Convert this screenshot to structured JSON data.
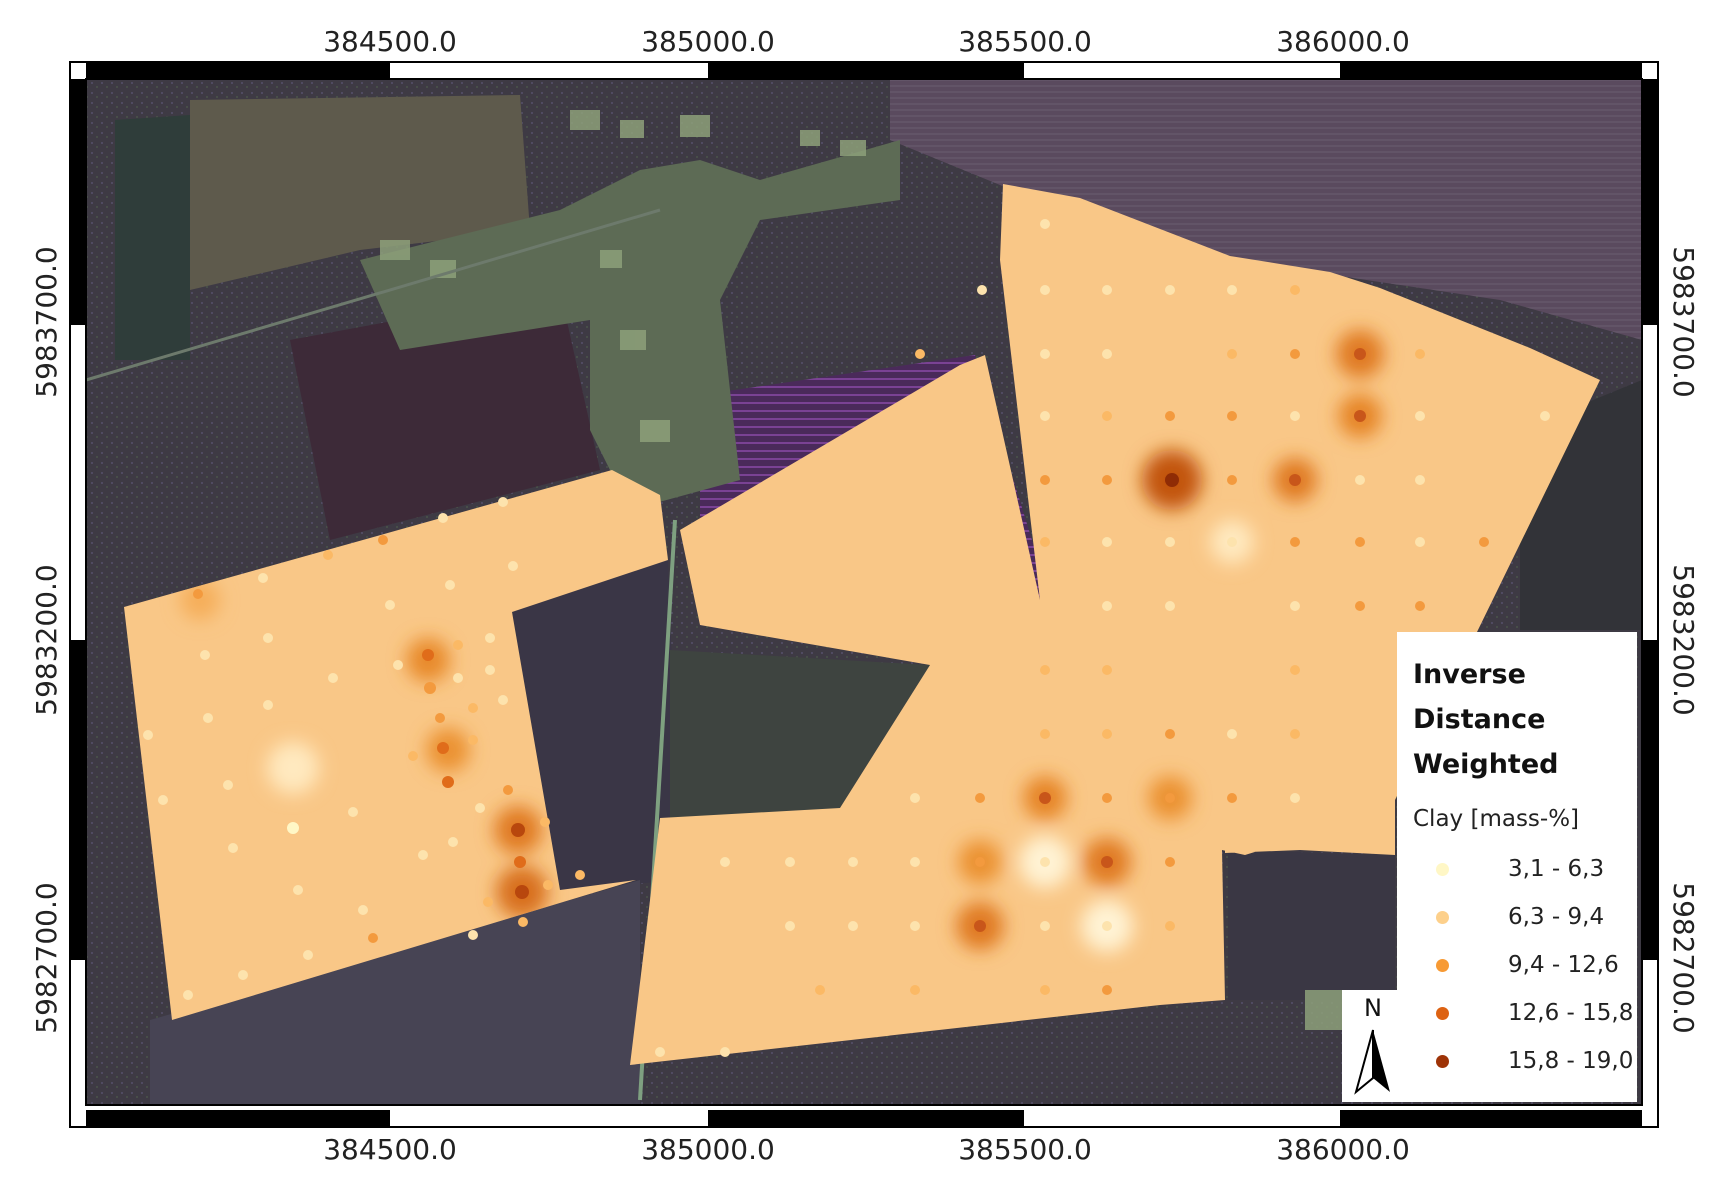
{
  "map": {
    "top_axis_labels": [
      "384500.0",
      "385000.0",
      "385500.0",
      "386000.0"
    ],
    "bottom_axis_labels": [
      "384500.0",
      "385000.0",
      "385500.0",
      "386000.0"
    ],
    "left_axis_labels": [
      "5983700.0",
      "5983200.0",
      "5982700.0"
    ],
    "right_axis_labels": [
      "5983700.0",
      "5983200.0",
      "5982700.0"
    ],
    "colors": {
      "background_dark": "#3b3446",
      "field_purple": "#4d2f5a",
      "field_olive": "#5e5a4c",
      "interpolation_base": "#f8c88a"
    }
  },
  "legend": {
    "title": "Inverse Distance Weighted",
    "subtitle": "Clay [mass-%]",
    "items": [
      {
        "label": "3,1 - 6,3",
        "color": "#fff7c6"
      },
      {
        "label": "6,3 - 9,4",
        "color": "#fdd08b"
      },
      {
        "label": "9,4 - 12,6",
        "color": "#f79a34"
      },
      {
        "label": "12,6 - 15,8",
        "color": "#dd6212"
      },
      {
        "label": "15,8 - 19,0",
        "color": "#9e3307"
      }
    ]
  },
  "north_arrow": {
    "letter": "N",
    "icon": "north-arrow-icon"
  }
}
